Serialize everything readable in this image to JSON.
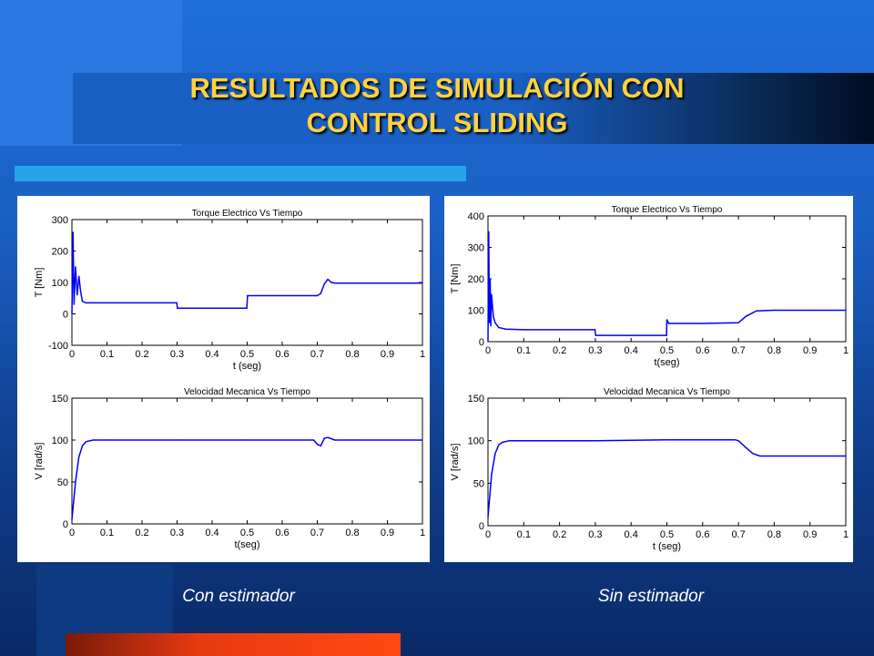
{
  "slide": {
    "title_line1": "RESULTADOS DE SIMULACIÓN CON",
    "title_line2": "CONTROL SLIDING",
    "caption_left": "Con estimador",
    "caption_right": "Sin estimador",
    "colors": {
      "background": "#1a5fc4",
      "title": "#ffd23f",
      "accent_bar": "#27a3ea",
      "bottom_bar": "#e83a10",
      "trace": "#0000ff"
    }
  },
  "chart_data": [
    {
      "type": "line",
      "panel": "left",
      "title": "Torque Electrico Vs Tiempo",
      "xlabel": "t (seg)",
      "ylabel": "T [Nm]",
      "xlim": [
        0,
        1
      ],
      "ylim": [
        -100,
        300
      ],
      "xticks": [
        "0",
        "0.1",
        "0.2",
        "0.3",
        "0.4",
        "0.5",
        "0.6",
        "0.7",
        "0.8",
        "0.9",
        "1"
      ],
      "yticks": [
        "-100",
        "0",
        "100",
        "200",
        "300"
      ],
      "series": [
        {
          "x": [
            0,
            0.003,
            0.006,
            0.01,
            0.015,
            0.02,
            0.025,
            0.03,
            0.04,
            0.05,
            0.1,
            0.2,
            0.299,
            0.301,
            0.35,
            0.4,
            0.499,
            0.501,
            0.6,
            0.7,
            0.71,
            0.72,
            0.73,
            0.74,
            0.75,
            0.8,
            0.9,
            1.0
          ],
          "y": [
            0,
            260,
            30,
            150,
            60,
            120,
            70,
            40,
            35,
            35,
            35,
            35,
            35,
            18,
            18,
            18,
            18,
            58,
            58,
            58,
            65,
            95,
            110,
            100,
            98,
            98,
            98,
            98
          ]
        }
      ]
    },
    {
      "type": "line",
      "panel": "left",
      "title": "Velocidad Mecanica Vs Tiempo",
      "xlabel": "t(seg)",
      "ylabel": "V [rad/s]",
      "xlim": [
        0,
        1
      ],
      "ylim": [
        0,
        150
      ],
      "xticks": [
        "0",
        "0.1",
        "0.2",
        "0.3",
        "0.4",
        "0.5",
        "0.6",
        "0.7",
        "0.8",
        "0.9",
        "1"
      ],
      "yticks": [
        "0",
        "50",
        "100",
        "150"
      ],
      "series": [
        {
          "x": [
            0,
            0.01,
            0.02,
            0.03,
            0.04,
            0.06,
            0.1,
            0.3,
            0.5,
            0.69,
            0.7,
            0.71,
            0.72,
            0.73,
            0.75,
            0.8,
            1.0
          ],
          "y": [
            5,
            50,
            80,
            93,
            98,
            100,
            100,
            100,
            100,
            100,
            95,
            93,
            102,
            103,
            100,
            100,
            100
          ]
        }
      ]
    },
    {
      "type": "line",
      "panel": "right",
      "title": "Torque Electrico Vs Tiempo",
      "xlabel": "t(seg)",
      "ylabel": "T [Nm]",
      "xlim": [
        0,
        1
      ],
      "ylim": [
        0,
        400
      ],
      "xticks": [
        "0",
        "0.1",
        "0.2",
        "0.3",
        "0.4",
        "0.5",
        "0.6",
        "0.7",
        "0.8",
        "0.9",
        "1"
      ],
      "yticks": [
        "0",
        "100",
        "200",
        "300",
        "400"
      ],
      "series": [
        {
          "x": [
            0,
            0.002,
            0.004,
            0.006,
            0.008,
            0.01,
            0.015,
            0.02,
            0.03,
            0.05,
            0.1,
            0.2,
            0.299,
            0.301,
            0.4,
            0.499,
            0.5,
            0.505,
            0.6,
            0.7,
            0.72,
            0.75,
            0.8,
            0.9,
            1.0
          ],
          "y": [
            0,
            350,
            60,
            200,
            50,
            150,
            80,
            60,
            45,
            40,
            38,
            38,
            38,
            20,
            20,
            20,
            70,
            58,
            58,
            60,
            80,
            98,
            100,
            100,
            100
          ]
        }
      ]
    },
    {
      "type": "line",
      "panel": "right",
      "title": "Velocidad Mecanica Vs Tiempo",
      "xlabel": "t (seg)",
      "ylabel": "V [rad/s]",
      "xlim": [
        0,
        1
      ],
      "ylim": [
        0,
        150
      ],
      "xticks": [
        "0",
        "0.1",
        "0.2",
        "0.3",
        "0.4",
        "0.5",
        "0.6",
        "0.7",
        "0.8",
        "0.9",
        "1"
      ],
      "yticks": [
        "0",
        "50",
        "100",
        "150"
      ],
      "series": [
        {
          "x": [
            0,
            0.01,
            0.02,
            0.03,
            0.04,
            0.06,
            0.1,
            0.3,
            0.5,
            0.69,
            0.7,
            0.72,
            0.74,
            0.76,
            0.8,
            1.0
          ],
          "y": [
            10,
            60,
            85,
            95,
            98,
            100,
            100,
            100,
            101,
            101,
            100,
            92,
            85,
            82,
            82,
            82
          ]
        }
      ]
    }
  ]
}
